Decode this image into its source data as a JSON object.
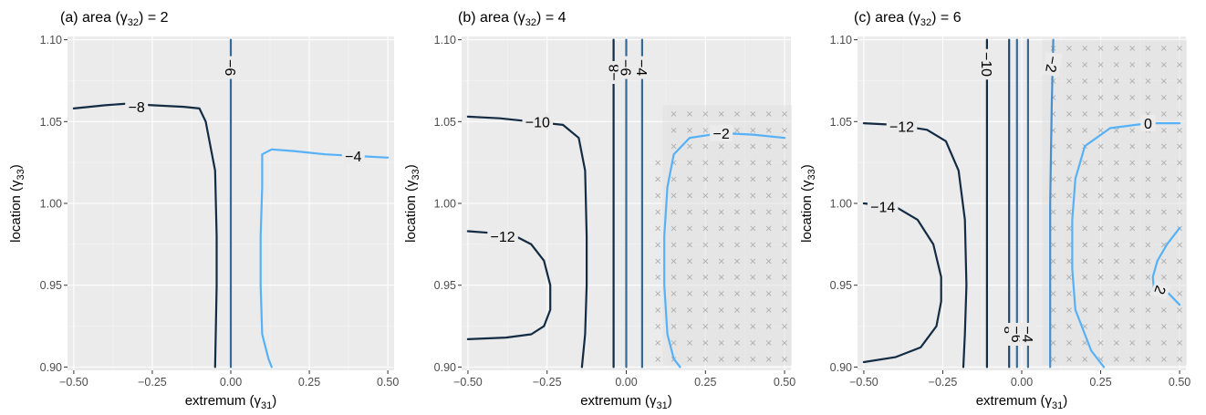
{
  "chart_data": [
    {
      "type": "contour",
      "title": "(a) area (γ32) = 2",
      "title_parts": {
        "prefix": "(a) area (",
        "gamma": "γ",
        "sub": "32",
        "suffix": ") = 2"
      },
      "xlabel": "extremum (γ31)",
      "xlabel_parts": {
        "prefix": "extremum (",
        "gamma": "γ",
        "sub": "31",
        "suffix": ")"
      },
      "ylabel": "location (γ33)",
      "ylabel_parts": {
        "prefix": "location (",
        "gamma": "γ",
        "sub": "33",
        "suffix": ")"
      },
      "xlim": [
        -0.52,
        0.52
      ],
      "ylim": [
        0.898,
        1.102
      ],
      "x_ticks": [
        -0.5,
        -0.25,
        0.0,
        0.25,
        0.5
      ],
      "x_tick_labels": [
        "−0.50",
        "−0.25",
        "0.00",
        "0.25",
        "0.50"
      ],
      "y_ticks": [
        0.9,
        0.95,
        1.0,
        1.05,
        1.1
      ],
      "y_tick_labels": [
        "0.90",
        "0.95",
        "1.00",
        "1.05",
        "1.10"
      ],
      "grid": true,
      "hatched_regions": [],
      "contours": [
        {
          "level": -8,
          "label": "−8",
          "color": "#132b43",
          "points": [
            [
              -0.5,
              1.058
            ],
            [
              -0.4,
              1.06
            ],
            [
              -0.33,
              1.061
            ],
            [
              -0.25,
              1.06
            ],
            [
              -0.15,
              1.059
            ],
            [
              -0.1,
              1.058
            ],
            [
              -0.08,
              1.05
            ],
            [
              -0.05,
              1.02
            ],
            [
              -0.045,
              0.98
            ],
            [
              -0.045,
              0.95
            ],
            [
              -0.048,
              0.92
            ],
            [
              -0.05,
              0.9
            ]
          ],
          "labels": [
            {
              "x": -0.3,
              "y": 1.059,
              "rotate": 0
            }
          ]
        },
        {
          "level": -6,
          "label": "−6",
          "color": "#336a98",
          "points": [
            [
              0.0,
              1.1
            ],
            [
              0.0,
              1.0
            ],
            [
              0.0,
              0.9
            ]
          ],
          "labels": [
            {
              "x": 0.0,
              "y": 1.083,
              "rotate": 90
            }
          ]
        },
        {
          "level": -4,
          "label": "−4",
          "color": "#56b1f7",
          "points": [
            [
              0.13,
              0.9
            ],
            [
              0.12,
              0.905
            ],
            [
              0.1,
              0.92
            ],
            [
              0.095,
              0.95
            ],
            [
              0.095,
              0.98
            ],
            [
              0.1,
              1.01
            ],
            [
              0.1,
              1.03
            ],
            [
              0.13,
              1.033
            ],
            [
              0.2,
              1.032
            ],
            [
              0.3,
              1.03
            ],
            [
              0.4,
              1.029
            ],
            [
              0.5,
              1.028
            ]
          ],
          "labels": [
            {
              "x": 0.39,
              "y": 1.029,
              "rotate": 0
            }
          ]
        }
      ]
    },
    {
      "type": "contour",
      "title": "(b) area (γ32) = 4",
      "title_parts": {
        "prefix": "(b) area (",
        "gamma": "γ",
        "sub": "32",
        "suffix": ") = 4"
      },
      "xlabel": "extremum (γ31)",
      "xlabel_parts": {
        "prefix": "extremum (",
        "gamma": "γ",
        "sub": "31",
        "suffix": ")"
      },
      "ylabel": "location (γ33)",
      "ylabel_parts": {
        "prefix": "location (",
        "gamma": "γ",
        "sub": "33",
        "suffix": ")"
      },
      "xlim": [
        -0.52,
        0.52
      ],
      "ylim": [
        0.898,
        1.102
      ],
      "x_ticks": [
        -0.5,
        -0.25,
        0.0,
        0.25,
        0.5
      ],
      "x_tick_labels": [
        "−0.50",
        "−0.25",
        "0.00",
        "0.25",
        "0.50"
      ],
      "y_ticks": [
        0.9,
        0.95,
        1.0,
        1.05,
        1.1
      ],
      "y_tick_labels": [
        "0.90",
        "0.95",
        "1.00",
        "1.05",
        "1.10"
      ],
      "grid": true,
      "hatched_regions": [
        {
          "xs": [
            0.15,
            0.2,
            0.25,
            0.3,
            0.35,
            0.4,
            0.45,
            0.5
          ],
          "ys": [
            0.905,
            0.915,
            0.925,
            0.935,
            0.945,
            0.955,
            0.965,
            0.975,
            0.985,
            0.995,
            1.005,
            1.015,
            1.025,
            1.035,
            1.045,
            1.055
          ],
          "x_min_cols": {
            "0.1": [
              0.905,
              1.025
            ]
          }
        }
      ],
      "contours": [
        {
          "level": -12,
          "label": "−12",
          "color": "#132b43",
          "points": [
            [
              -0.5,
              0.983
            ],
            [
              -0.43,
              0.982
            ],
            [
              -0.35,
              0.98
            ],
            [
              -0.3,
              0.975
            ],
            [
              -0.26,
              0.965
            ],
            [
              -0.24,
              0.95
            ],
            [
              -0.24,
              0.935
            ],
            [
              -0.26,
              0.925
            ],
            [
              -0.3,
              0.92
            ],
            [
              -0.38,
              0.918
            ],
            [
              -0.5,
              0.917
            ]
          ],
          "labels": [
            {
              "x": -0.39,
              "y": 0.98,
              "rotate": 0
            }
          ]
        },
        {
          "level": -10,
          "label": "−10",
          "color": "#132b43",
          "points": [
            [
              -0.5,
              1.053
            ],
            [
              -0.4,
              1.052
            ],
            [
              -0.3,
              1.05
            ],
            [
              -0.2,
              1.048
            ],
            [
              -0.15,
              1.04
            ],
            [
              -0.13,
              1.02
            ],
            [
              -0.125,
              0.98
            ],
            [
              -0.125,
              0.95
            ],
            [
              -0.13,
              0.92
            ],
            [
              -0.14,
              0.9
            ]
          ],
          "labels": [
            {
              "x": -0.28,
              "y": 1.05,
              "rotate": 0
            }
          ]
        },
        {
          "level": -8,
          "label": "−8",
          "color": "#132b43",
          "points": [
            [
              -0.04,
              1.1
            ],
            [
              -0.04,
              1.0
            ],
            [
              -0.04,
              0.9
            ]
          ],
          "labels": [
            {
              "x": -0.04,
              "y": 1.08,
              "rotate": -90
            }
          ]
        },
        {
          "level": -6,
          "label": "−6",
          "color": "#336a98",
          "points": [
            [
              0.0,
              1.1
            ],
            [
              0.0,
              1.0
            ],
            [
              0.0,
              0.9
            ]
          ],
          "labels": [
            {
              "x": 0.0,
              "y": 1.083,
              "rotate": 90
            }
          ]
        },
        {
          "level": -4,
          "label": "−4",
          "color": "#336a98",
          "points": [
            [
              0.05,
              1.1
            ],
            [
              0.05,
              1.0
            ],
            [
              0.05,
              0.9
            ]
          ],
          "labels": [
            {
              "x": 0.05,
              "y": 1.083,
              "rotate": 90
            }
          ]
        },
        {
          "level": -2,
          "label": "−2",
          "color": "#56b1f7",
          "points": [
            [
              0.17,
              0.9
            ],
            [
              0.15,
              0.905
            ],
            [
              0.13,
              0.92
            ],
            [
              0.12,
              0.95
            ],
            [
              0.12,
              0.98
            ],
            [
              0.13,
              1.01
            ],
            [
              0.15,
              1.03
            ],
            [
              0.2,
              1.04
            ],
            [
              0.3,
              1.043
            ],
            [
              0.4,
              1.042
            ],
            [
              0.5,
              1.04
            ]
          ],
          "labels": [
            {
              "x": 0.3,
              "y": 1.043,
              "rotate": 0
            }
          ]
        }
      ]
    },
    {
      "type": "contour",
      "title": "(c) area (γ32) = 6",
      "title_parts": {
        "prefix": "(c) area (",
        "gamma": "γ",
        "sub": "32",
        "suffix": ") = 6"
      },
      "xlabel": "extremum (γ31)",
      "xlabel_parts": {
        "prefix": "extremum (",
        "gamma": "γ",
        "sub": "31",
        "suffix": ")"
      },
      "ylabel": "location (γ33)",
      "ylabel_parts": {
        "prefix": "location (",
        "gamma": "γ",
        "sub": "33",
        "suffix": ")"
      },
      "xlim": [
        -0.52,
        0.52
      ],
      "ylim": [
        0.898,
        1.102
      ],
      "x_ticks": [
        -0.5,
        -0.25,
        0.0,
        0.25,
        0.5
      ],
      "x_tick_labels": [
        "−0.50",
        "−0.25",
        "0.00",
        "0.25",
        "0.50"
      ],
      "y_ticks": [
        0.9,
        0.95,
        1.0,
        1.05,
        1.1
      ],
      "y_tick_labels": [
        "0.90",
        "0.95",
        "1.00",
        "1.05",
        "1.10"
      ],
      "grid": true,
      "hatched_regions": [
        {
          "xs": [
            0.1,
            0.15,
            0.2,
            0.25,
            0.3,
            0.35,
            0.4,
            0.45,
            0.5
          ],
          "ys": [
            0.905,
            0.915,
            0.925,
            0.935,
            0.945,
            0.955,
            0.965,
            0.975,
            0.985,
            0.995,
            1.005,
            1.015,
            1.025,
            1.035,
            1.045,
            1.055,
            1.065,
            1.075,
            1.085,
            1.095
          ],
          "x_min_cols": {}
        }
      ],
      "contours": [
        {
          "level": -14,
          "label": "−14",
          "color": "#132b43",
          "points": [
            [
              -0.5,
              1.0
            ],
            [
              -0.4,
              0.998
            ],
            [
              -0.33,
              0.99
            ],
            [
              -0.28,
              0.975
            ],
            [
              -0.255,
              0.955
            ],
            [
              -0.255,
              0.94
            ],
            [
              -0.27,
              0.925
            ],
            [
              -0.32,
              0.912
            ],
            [
              -0.4,
              0.906
            ],
            [
              -0.5,
              0.903
            ]
          ],
          "labels": [
            {
              "x": -0.44,
              "y": 0.998,
              "rotate": 0
            }
          ]
        },
        {
          "level": -12,
          "label": "−12",
          "color": "#132b43",
          "points": [
            [
              -0.5,
              1.049
            ],
            [
              -0.4,
              1.048
            ],
            [
              -0.3,
              1.045
            ],
            [
              -0.24,
              1.038
            ],
            [
              -0.2,
              1.02
            ],
            [
              -0.18,
              0.99
            ],
            [
              -0.175,
              0.95
            ],
            [
              -0.18,
              0.92
            ],
            [
              -0.185,
              0.9
            ]
          ],
          "labels": [
            {
              "x": -0.38,
              "y": 1.047,
              "rotate": 0
            }
          ]
        },
        {
          "level": -10,
          "label": "−10",
          "color": "#132b43",
          "points": [
            [
              -0.11,
              1.1
            ],
            [
              -0.11,
              1.0
            ],
            [
              -0.11,
              0.9
            ]
          ],
          "labels": [
            {
              "x": -0.11,
              "y": 1.085,
              "rotate": 90
            }
          ]
        },
        {
          "level": -8,
          "label": "−8",
          "color": "#1e4767",
          "points": [
            [
              -0.04,
              1.1
            ],
            [
              -0.04,
              1.0
            ],
            [
              -0.04,
              0.9
            ]
          ],
          "labels": [
            {
              "x": -0.04,
              "y": 0.92,
              "rotate": -90
            }
          ]
        },
        {
          "level": -6,
          "label": "−6",
          "color": "#336a98",
          "points": [
            [
              -0.015,
              1.1
            ],
            [
              -0.015,
              1.0
            ],
            [
              -0.015,
              0.9
            ]
          ],
          "labels": [
            {
              "x": -0.015,
              "y": 0.92,
              "rotate": 90
            }
          ]
        },
        {
          "level": -4,
          "label": "−4",
          "color": "#336a98",
          "points": [
            [
              0.02,
              1.1
            ],
            [
              0.02,
              1.0
            ],
            [
              0.02,
              0.9
            ]
          ],
          "labels": [
            {
              "x": 0.02,
              "y": 0.92,
              "rotate": 90
            }
          ]
        },
        {
          "level": -2,
          "label": "−2",
          "color": "#4a8fcb",
          "points": [
            [
              0.09,
              0.9
            ],
            [
              0.09,
              1.0
            ],
            [
              0.095,
              1.06
            ],
            [
              0.1,
              1.1
            ]
          ],
          "labels": [
            {
              "x": 0.097,
              "y": 1.085,
              "rotate": 100
            }
          ]
        },
        {
          "level": 0,
          "label": "0",
          "color": "#56b1f7",
          "points": [
            [
              0.26,
              0.9
            ],
            [
              0.22,
              0.91
            ],
            [
              0.17,
              0.935
            ],
            [
              0.16,
              0.96
            ],
            [
              0.16,
              0.99
            ],
            [
              0.17,
              1.015
            ],
            [
              0.2,
              1.035
            ],
            [
              0.28,
              1.046
            ],
            [
              0.4,
              1.049
            ],
            [
              0.5,
              1.049
            ]
          ],
          "labels": [
            {
              "x": 0.4,
              "y": 1.049,
              "rotate": 0
            }
          ]
        },
        {
          "level": 2,
          "label": "2",
          "color": "#56b1f7",
          "points": [
            [
              0.5,
              0.985
            ],
            [
              0.46,
              0.975
            ],
            [
              0.43,
              0.965
            ],
            [
              0.415,
              0.955
            ],
            [
              0.42,
              0.945
            ],
            [
              0.45,
              0.948
            ],
            [
              0.5,
              0.938
            ]
          ],
          "labels": [
            {
              "x": 0.44,
              "y": 0.947,
              "rotate": 110
            }
          ]
        }
      ]
    }
  ]
}
